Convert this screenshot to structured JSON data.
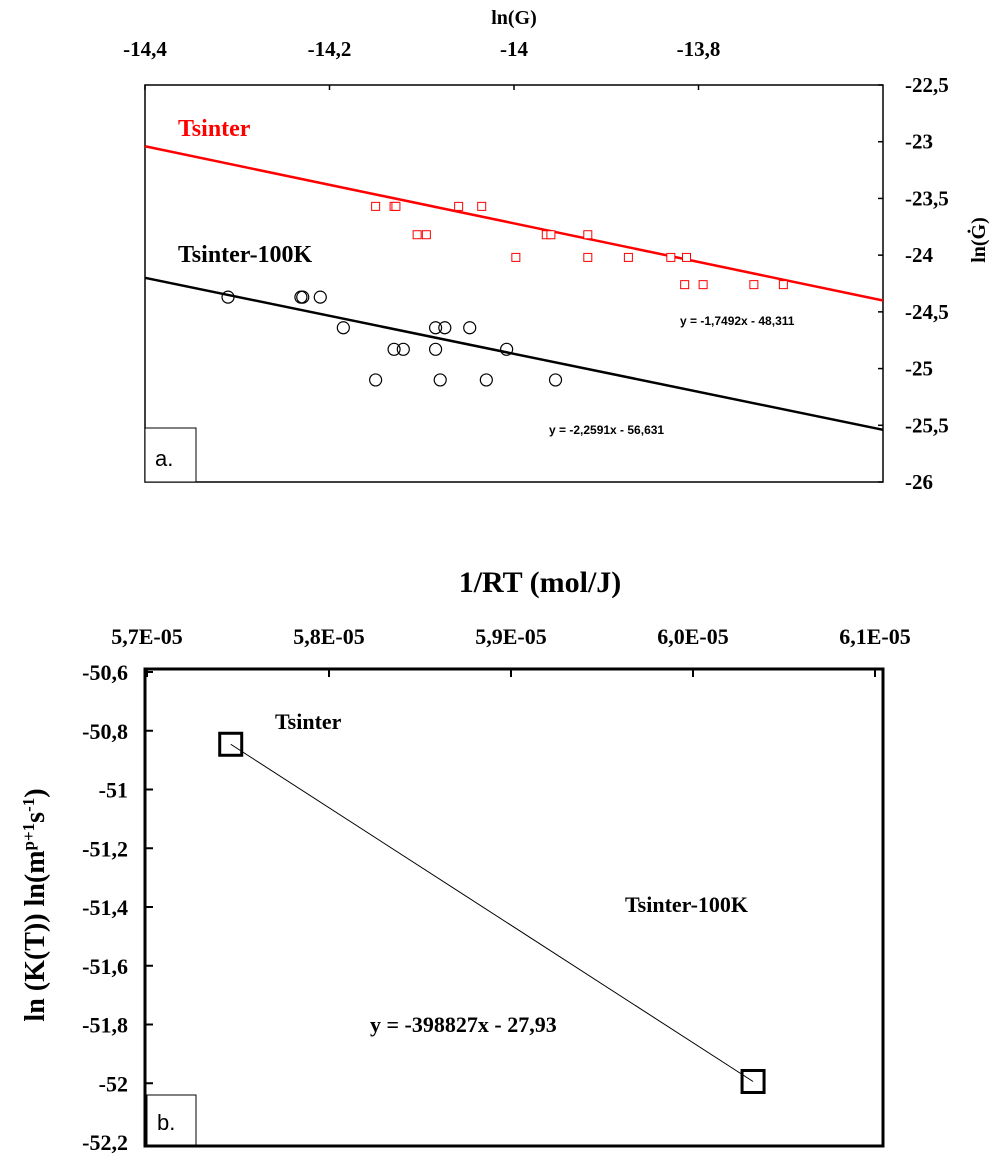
{
  "chart_data": [
    {
      "type": "scatter",
      "panel_label": "a.",
      "xlabel": "ln(G)",
      "ylabel": "ln(Ġ)",
      "xlim": [
        -14.4,
        -13.6
      ],
      "ylim": [
        -26,
        -22.5
      ],
      "x_ticks": [
        "-14,4",
        "-14,2",
        "-14",
        "-13,8"
      ],
      "y_ticks": [
        "-22,5",
        "-23",
        "-23,5",
        "-24",
        "-24,5",
        "-25",
        "-25,5",
        "-26"
      ],
      "x_axis_position": "top",
      "y_axis_position": "right",
      "grid": false,
      "series": [
        {
          "name": "Tsinter",
          "color": "#ff0000",
          "marker": "square",
          "equation": "y = -1,7492x - 48,311",
          "points": [
            [
              -14.15,
              -23.57
            ],
            [
              -14.13,
              -23.57
            ],
            [
              -14.128,
              -23.57
            ],
            [
              -14.06,
              -23.57
            ],
            [
              -14.035,
              -23.57
            ],
            [
              -14.105,
              -23.82
            ],
            [
              -14.095,
              -23.82
            ],
            [
              -13.965,
              -23.82
            ],
            [
              -13.96,
              -23.82
            ],
            [
              -13.92,
              -23.82
            ],
            [
              -13.998,
              -24.02
            ],
            [
              -13.92,
              -24.02
            ],
            [
              -13.876,
              -24.02
            ],
            [
              -13.83,
              -24.02
            ],
            [
              -13.813,
              -24.02
            ],
            [
              -13.815,
              -24.26
            ],
            [
              -13.795,
              -24.26
            ],
            [
              -13.74,
              -24.26
            ],
            [
              -13.708,
              -24.26
            ]
          ]
        },
        {
          "name": "Tsinter-100K",
          "color": "#000000",
          "marker": "circle",
          "equation": "y = -2,2591x - 56,631",
          "points": [
            [
              -14.31,
              -24.37
            ],
            [
              -14.231,
              -24.37
            ],
            [
              -14.229,
              -24.37
            ],
            [
              -14.21,
              -24.37
            ],
            [
              -14.185,
              -24.64
            ],
            [
              -14.085,
              -24.64
            ],
            [
              -14.075,
              -24.64
            ],
            [
              -14.048,
              -24.64
            ],
            [
              -14.13,
              -24.83
            ],
            [
              -14.12,
              -24.83
            ],
            [
              -14.085,
              -24.83
            ],
            [
              -14.008,
              -24.83
            ],
            [
              -14.15,
              -25.1
            ],
            [
              -14.08,
              -25.1
            ],
            [
              -14.03,
              -25.1
            ],
            [
              -13.955,
              -25.1
            ]
          ]
        }
      ]
    },
    {
      "type": "scatter",
      "panel_label": "b.",
      "xlabel": "1/RT (mol/J)",
      "ylabel": "ln (K(T)) ln(m^(p+1)s^(-1))",
      "ylabel_parts": {
        "main": "ln (K(T)) ln(m",
        "sup1": "p+1",
        "mid": "s",
        "sup2": "-1",
        "end": ")"
      },
      "xlim": [
        5.7e-05,
        6.1e-05
      ],
      "ylim": [
        -52.2,
        -50.6
      ],
      "x_ticks": [
        "5,7E-05",
        "5,8E-05",
        "5,9E-05",
        "6,0E-05",
        "6,1E-05"
      ],
      "y_ticks": [
        "-50,6",
        "-50,8",
        "-51",
        "-51,2",
        "-51,4",
        "-51,6",
        "-51,8",
        "-52",
        "-52,2"
      ],
      "x_axis_position": "top",
      "grid": false,
      "equation": "y = -398827x - 27,93",
      "points": [
        {
          "label": "Tsinter",
          "x": 5.746e-05,
          "y": -50.846
        },
        {
          "label": "Tsinter-100K",
          "x": 6.033e-05,
          "y": -51.994
        }
      ]
    }
  ]
}
